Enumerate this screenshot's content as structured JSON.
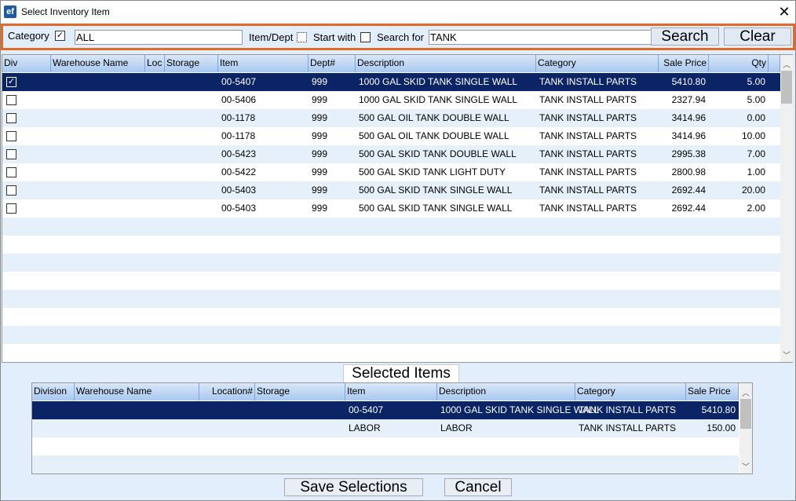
{
  "window": {
    "title": "Select Inventory Item",
    "logo": "ef",
    "close_icon": "close-icon"
  },
  "filter": {
    "category_label": "Category",
    "category_checked": true,
    "category_value": "ALL",
    "itemdept_label": "Item/Dept",
    "itemdept_checked": false,
    "startwith_label": "Start with",
    "startwith_checked": false,
    "searchfor_label": "Search for",
    "searchfor_value": "TANK",
    "search_button": "Search",
    "clear_button": "Clear"
  },
  "colors": {
    "accent": "#e06b24",
    "selected_row": "#0a2465",
    "header": "#a9c8ef",
    "background": "#e2eefb"
  },
  "results": {
    "columns": [
      "Div",
      "Warehouse Name",
      "Loc",
      "Storage",
      "Item",
      "Dept#",
      "Description",
      "Category",
      "Sale Price",
      "Qty"
    ],
    "rows": [
      {
        "checked": true,
        "item": "00-5407",
        "dept": "999",
        "description": "1000 GAL SKID TANK SINGLE WALL",
        "category": "TANK INSTALL PARTS",
        "price": "5410.80",
        "qty": "5.00"
      },
      {
        "checked": false,
        "item": "00-5406",
        "dept": "999",
        "description": "1000 GAL SKID TANK SINGLE WALL",
        "category": "TANK INSTALL PARTS",
        "price": "2327.94",
        "qty": "5.00"
      },
      {
        "checked": false,
        "item": "00-1178",
        "dept": "999",
        "description": "500 GAL OIL TANK DOUBLE WALL",
        "category": "TANK INSTALL PARTS",
        "price": "3414.96",
        "qty": "0.00"
      },
      {
        "checked": false,
        "item": "00-1178",
        "dept": "999",
        "description": "500 GAL OIL TANK DOUBLE WALL",
        "category": "TANK INSTALL PARTS",
        "price": "3414.96",
        "qty": "10.00"
      },
      {
        "checked": false,
        "item": "00-5423",
        "dept": "999",
        "description": "500 GAL SKID TANK DOUBLE WALL",
        "category": "TANK INSTALL PARTS",
        "price": "2995.38",
        "qty": "7.00"
      },
      {
        "checked": false,
        "item": "00-5422",
        "dept": "999",
        "description": "500 GAL SKID TANK LIGHT DUTY",
        "category": "TANK INSTALL PARTS",
        "price": "2800.98",
        "qty": "1.00"
      },
      {
        "checked": false,
        "item": "00-5403",
        "dept": "999",
        "description": "500 GAL SKID TANK SINGLE WALL",
        "category": "TANK INSTALL PARTS",
        "price": "2692.44",
        "qty": "20.00"
      },
      {
        "checked": false,
        "item": "00-5403",
        "dept": "999",
        "description": "500 GAL SKID TANK SINGLE WALL",
        "category": "TANK INSTALL PARTS",
        "price": "2692.44",
        "qty": "2.00"
      }
    ]
  },
  "selected": {
    "title": "Selected Items",
    "columns": [
      "Division",
      "Warehouse Name",
      "Location#",
      "Storage",
      "Item",
      "Description",
      "Category",
      "Sale Price"
    ],
    "rows": [
      {
        "item": "00-5407",
        "description": "1000 GAL SKID TANK SINGLE WALL",
        "category": "TANK INSTALL PARTS",
        "price": "5410.80"
      },
      {
        "item": "LABOR",
        "description": "LABOR",
        "category": "TANK INSTALL PARTS",
        "price": "150.00"
      }
    ]
  },
  "footer": {
    "save_button": "Save Selections",
    "cancel_button": "Cancel"
  }
}
